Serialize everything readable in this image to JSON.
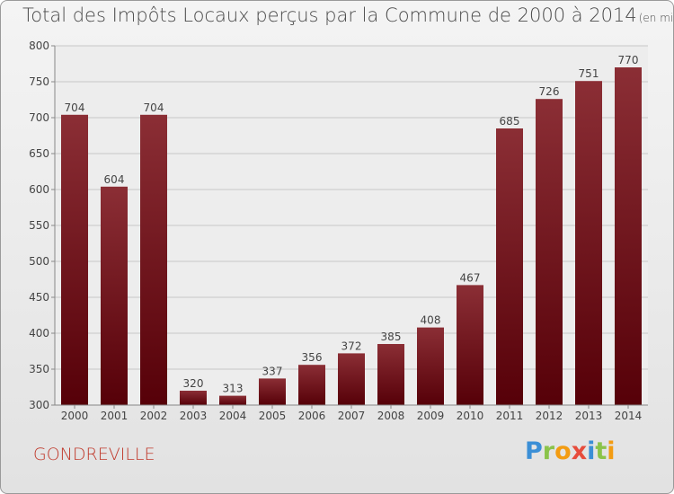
{
  "title": "Total des Impôts Locaux perçus par la Commune de 2000 à 2014",
  "title_unit": "(en milliers d'€)",
  "commune": "GONDREVILLE",
  "brand": {
    "text": "Proxiti",
    "letters": [
      {
        "ch": "P",
        "color": "#3b8fd6"
      },
      {
        "ch": "r",
        "color": "#8bc34a"
      },
      {
        "ch": "o",
        "color": "#f39c12"
      },
      {
        "ch": "x",
        "color": "#e74c3c"
      },
      {
        "ch": "i",
        "color": "#3b8fd6"
      },
      {
        "ch": "t",
        "color": "#8bc34a"
      },
      {
        "ch": "i",
        "color": "#f39c12"
      }
    ]
  },
  "colors": {
    "bar_top": "#8b2e35",
    "bar_bottom": "#560008",
    "axis_text": "#444444",
    "grid": "#c8c8c8"
  },
  "chart_data": {
    "type": "bar",
    "title": "Total des Impôts Locaux perçus par la Commune de 2000 à 2014",
    "unit": "(en milliers d'€)",
    "categories": [
      "2000",
      "2001",
      "2002",
      "2003",
      "2004",
      "2005",
      "2006",
      "2007",
      "2008",
      "2009",
      "2010",
      "2011",
      "2012",
      "2013",
      "2014"
    ],
    "values": [
      704,
      604,
      704,
      320,
      313,
      337,
      356,
      372,
      385,
      408,
      467,
      685,
      726,
      751,
      770
    ],
    "ylim": [
      300,
      800
    ],
    "yticks": [
      300,
      350,
      400,
      450,
      500,
      550,
      600,
      650,
      700,
      750,
      800
    ],
    "grid": true,
    "data_labels": true
  }
}
